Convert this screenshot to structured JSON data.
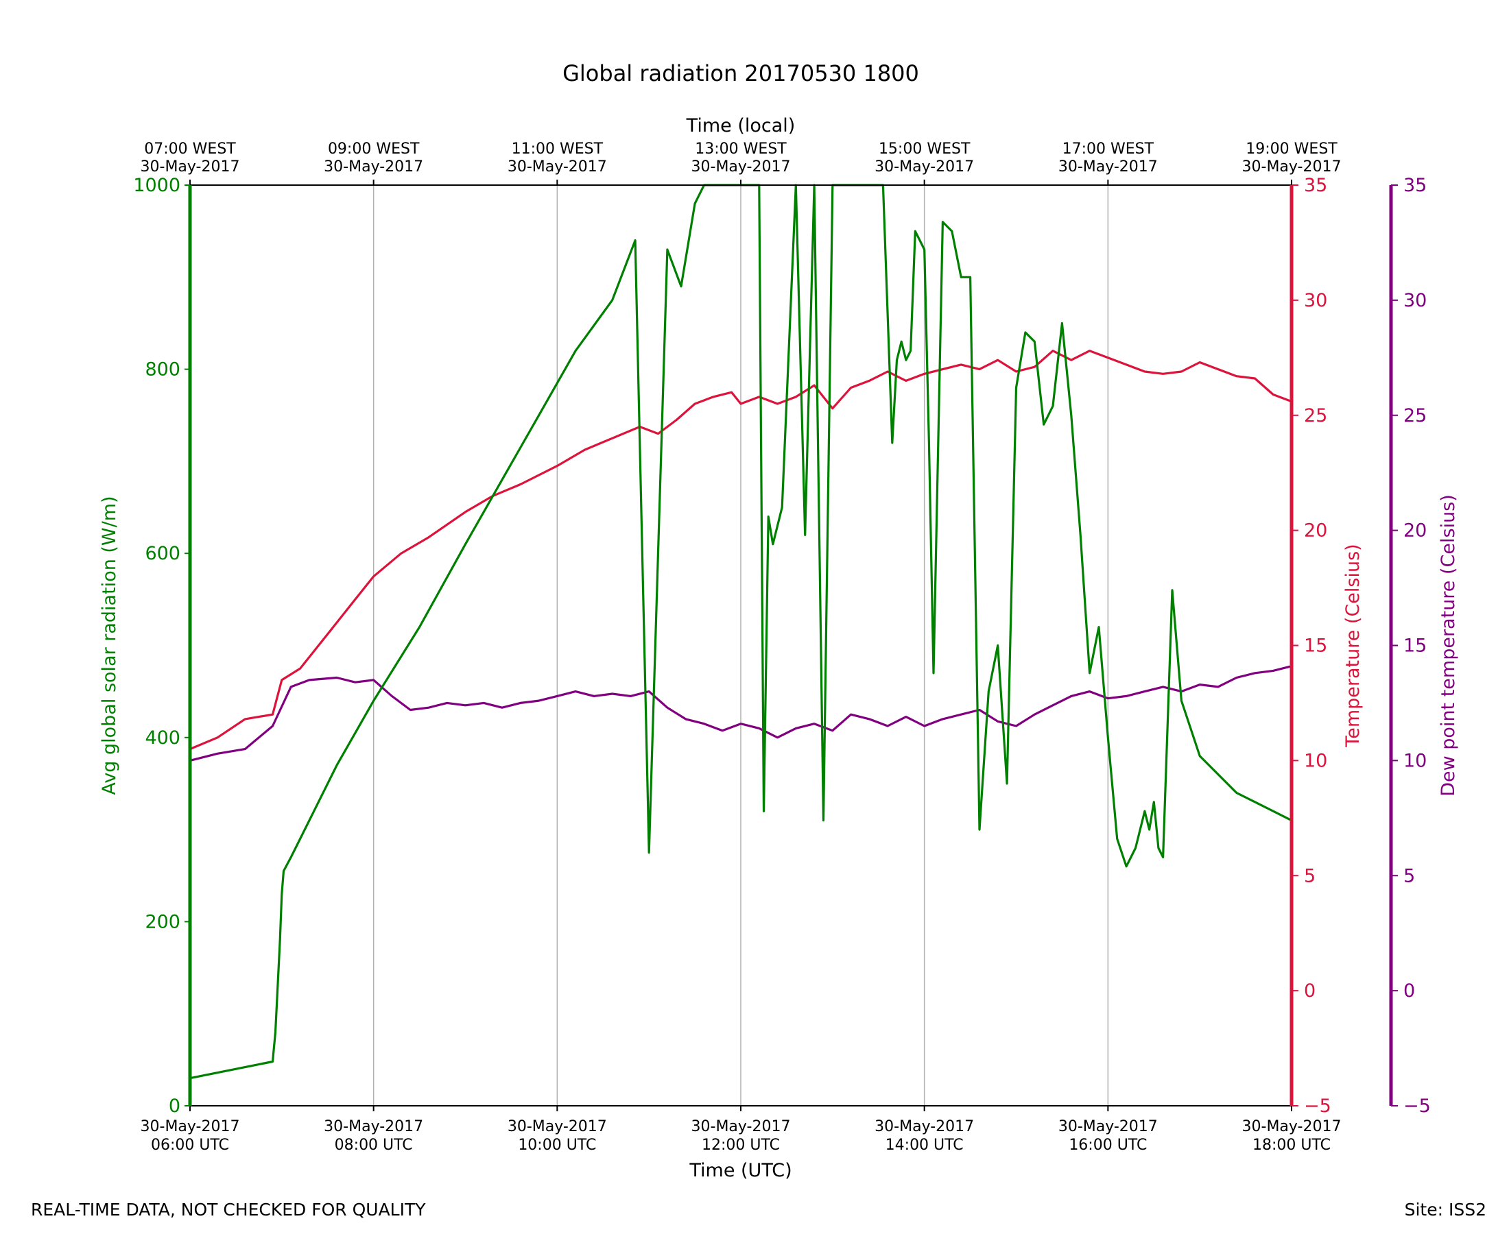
{
  "chart_data": {
    "type": "line",
    "title": "Global radiation 20170530 1800",
    "xlabel": "Time (UTC)",
    "x2label": "Time (local)",
    "xlim": [
      6,
      18
    ],
    "x_ticks": [
      {
        "x": 6,
        "utc_date": "30-May-2017",
        "utc_time": "06:00 UTC",
        "local_time": "07:00 WEST",
        "local_date": "30-May-2017"
      },
      {
        "x": 8,
        "utc_date": "30-May-2017",
        "utc_time": "08:00 UTC",
        "local_time": "09:00 WEST",
        "local_date": "30-May-2017"
      },
      {
        "x": 10,
        "utc_date": "30-May-2017",
        "utc_time": "10:00 UTC",
        "local_time": "11:00 WEST",
        "local_date": "30-May-2017"
      },
      {
        "x": 12,
        "utc_date": "30-May-2017",
        "utc_time": "12:00 UTC",
        "local_time": "13:00 WEST",
        "local_date": "30-May-2017"
      },
      {
        "x": 14,
        "utc_date": "30-May-2017",
        "utc_time": "14:00 UTC",
        "local_time": "15:00 WEST",
        "local_date": "30-May-2017"
      },
      {
        "x": 16,
        "utc_date": "30-May-2017",
        "utc_time": "16:00 UTC",
        "local_time": "17:00 WEST",
        "local_date": "30-May-2017"
      },
      {
        "x": 18,
        "utc_date": "30-May-2017",
        "utc_time": "18:00 UTC",
        "local_time": "19:00 WEST",
        "local_date": "30-May-2017"
      }
    ],
    "axes": [
      {
        "id": "radiation",
        "label": "Avg global solar radiation (W/m)",
        "ylim": [
          0,
          1000
        ],
        "ticks": [
          0,
          200,
          400,
          600,
          800,
          1000
        ],
        "color": "#008000"
      },
      {
        "id": "temperature",
        "label": "Temperature (Celsius)",
        "ylim": [
          -5,
          35
        ],
        "ticks": [
          -5,
          0,
          5,
          10,
          15,
          20,
          25,
          30,
          35
        ],
        "color": "#dc143c"
      },
      {
        "id": "dewpoint",
        "label": "Dew point temperature (Celsius)",
        "ylim": [
          -5,
          35
        ],
        "ticks": [
          -5,
          0,
          5,
          10,
          15,
          20,
          25,
          30,
          35
        ],
        "color": "#800080"
      }
    ],
    "series": [
      {
        "name": "Avg global solar radiation",
        "axis": "radiation",
        "color": "#008000",
        "x": [
          6.0,
          6.9,
          6.93,
          6.98,
          7.0,
          7.02,
          7.1,
          7.35,
          7.6,
          8.0,
          8.5,
          9.0,
          9.4,
          9.8,
          10.2,
          10.6,
          10.85,
          11.0,
          11.2,
          11.35,
          11.5,
          11.6,
          11.7,
          11.8,
          11.85,
          11.9,
          11.93,
          11.96,
          12.0,
          12.05,
          12.1,
          12.2,
          12.25,
          12.3,
          12.35,
          12.45,
          12.6,
          12.7,
          12.8,
          12.9,
          13.0,
          13.1,
          13.2,
          13.3,
          13.4,
          13.5,
          13.55,
          13.65,
          13.7,
          13.75,
          13.8,
          13.85,
          13.9,
          14.0,
          14.05,
          14.1,
          14.2,
          14.3,
          14.4,
          14.5,
          14.6,
          14.7,
          14.8,
          14.9,
          15.0,
          15.1,
          15.2,
          15.3,
          15.4,
          15.5,
          15.6,
          15.7,
          15.8,
          15.9,
          16.0,
          16.1,
          16.2,
          16.3,
          16.4,
          16.45,
          16.5,
          16.55,
          16.6,
          16.7,
          16.8,
          16.9,
          17.0,
          17.2,
          17.4,
          17.6,
          17.8,
          18.0
        ],
        "y": [
          30,
          48,
          80,
          180,
          230,
          255,
          270,
          320,
          370,
          440,
          520,
          610,
          680,
          750,
          820,
          875,
          940,
          275,
          930,
          890,
          980,
          1000,
          1000,
          1000,
          1000,
          1000,
          1000,
          1000,
          1000,
          1000,
          1000,
          1000,
          320,
          640,
          610,
          650,
          1000,
          620,
          1000,
          310,
          1000,
          1000,
          1000,
          1000,
          1000,
          1000,
          1000,
          720,
          810,
          830,
          810,
          820,
          950,
          930,
          720,
          470,
          960,
          950,
          900,
          900,
          300,
          450,
          500,
          350,
          780,
          840,
          830,
          740,
          760,
          850,
          750,
          620,
          470,
          520,
          400,
          290,
          260,
          280,
          320,
          300,
          330,
          280,
          270,
          560,
          440,
          410,
          380,
          360,
          340,
          330,
          320,
          310
        ]
      },
      {
        "name": "Temperature",
        "axis": "temperature",
        "color": "#dc143c",
        "x": [
          6.0,
          6.3,
          6.6,
          6.9,
          7.0,
          7.2,
          7.5,
          7.8,
          8.0,
          8.3,
          8.6,
          9.0,
          9.3,
          9.6,
          10.0,
          10.3,
          10.6,
          10.9,
          11.1,
          11.3,
          11.5,
          11.7,
          11.9,
          12.0,
          12.2,
          12.4,
          12.6,
          12.8,
          13.0,
          13.2,
          13.4,
          13.6,
          13.8,
          14.0,
          14.2,
          14.4,
          14.6,
          14.8,
          15.0,
          15.2,
          15.4,
          15.6,
          15.8,
          16.0,
          16.2,
          16.4,
          16.6,
          16.8,
          17.0,
          17.2,
          17.4,
          17.6,
          17.8,
          18.0
        ],
        "y": [
          10.5,
          11.0,
          11.8,
          12.0,
          13.5,
          14.0,
          15.5,
          17.0,
          18.0,
          19.0,
          19.7,
          20.8,
          21.5,
          22.0,
          22.8,
          23.5,
          24.0,
          24.5,
          24.2,
          24.8,
          25.5,
          25.8,
          26.0,
          25.5,
          25.8,
          25.5,
          25.8,
          26.3,
          25.3,
          26.2,
          26.5,
          26.9,
          26.5,
          26.8,
          27.0,
          27.2,
          27.0,
          27.4,
          26.9,
          27.1,
          27.8,
          27.4,
          27.8,
          27.5,
          27.2,
          26.9,
          26.8,
          26.9,
          27.3,
          27.0,
          26.7,
          26.6,
          25.9,
          25.6
        ]
      },
      {
        "name": "Dew point temperature",
        "axis": "dewpoint",
        "color": "#800080",
        "x": [
          6.0,
          6.3,
          6.6,
          6.9,
          7.1,
          7.3,
          7.6,
          7.8,
          8.0,
          8.2,
          8.4,
          8.6,
          8.8,
          9.0,
          9.2,
          9.4,
          9.6,
          9.8,
          10.0,
          10.2,
          10.4,
          10.6,
          10.8,
          11.0,
          11.2,
          11.4,
          11.6,
          11.8,
          12.0,
          12.2,
          12.4,
          12.6,
          12.8,
          13.0,
          13.2,
          13.4,
          13.6,
          13.8,
          14.0,
          14.2,
          14.4,
          14.6,
          14.8,
          15.0,
          15.2,
          15.4,
          15.6,
          15.8,
          16.0,
          16.2,
          16.4,
          16.6,
          16.8,
          17.0,
          17.2,
          17.4,
          17.6,
          17.8,
          18.0
        ],
        "y": [
          10.0,
          10.3,
          10.5,
          11.5,
          13.2,
          13.5,
          13.6,
          13.4,
          13.5,
          12.8,
          12.2,
          12.3,
          12.5,
          12.4,
          12.5,
          12.3,
          12.5,
          12.6,
          12.8,
          13.0,
          12.8,
          12.9,
          12.8,
          13.0,
          12.3,
          11.8,
          11.6,
          11.3,
          11.6,
          11.4,
          11.0,
          11.4,
          11.6,
          11.3,
          12.0,
          11.8,
          11.5,
          11.9,
          11.5,
          11.8,
          12.0,
          12.2,
          11.7,
          11.5,
          12.0,
          12.4,
          12.8,
          13.0,
          12.7,
          12.8,
          13.0,
          13.2,
          13.0,
          13.3,
          13.2,
          13.6,
          13.8,
          13.9,
          14.1
        ]
      }
    ]
  },
  "footer": {
    "left": "REAL-TIME DATA, NOT CHECKED FOR QUALITY",
    "right": "Site: ISS2"
  }
}
